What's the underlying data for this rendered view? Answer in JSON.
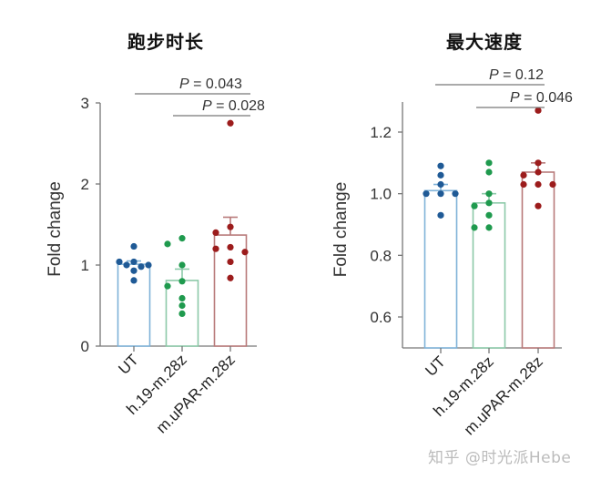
{
  "chart_data": [
    {
      "type": "bar",
      "title": "跑步时长",
      "xlabel": "",
      "ylabel": "Fold change",
      "ylim": [
        0,
        3
      ],
      "yticks": [
        0,
        1,
        2,
        3
      ],
      "grid": false,
      "categories": [
        "UT",
        "h.19-m.28z",
        "m.uPAR-m.28z"
      ],
      "values": [
        1.01,
        0.81,
        1.37
      ],
      "errors": [
        0.04,
        0.14,
        0.22
      ],
      "points": [
        [
          1.23,
          1.04,
          1.04,
          1.0,
          1.0,
          0.98,
          0.93,
          0.81
        ],
        [
          1.33,
          1.26,
          1.0,
          0.8,
          0.74,
          0.59,
          0.5,
          0.4
        ],
        [
          2.75,
          1.47,
          1.4,
          1.22,
          1.2,
          1.16,
          1.04,
          0.84
        ]
      ],
      "colors": {
        "bar_outline": [
          "#7fb2d8",
          "#8cc9a8",
          "#b87a7a"
        ],
        "points": [
          "#1f5a96",
          "#1f9a4e",
          "#9c1c1c"
        ]
      },
      "annotations": [
        {
          "text": "P = 0.043",
          "from": "UT",
          "to": "m.uPAR-m.28z"
        },
        {
          "text": "P = 0.028",
          "from": "h.19-m.28z",
          "to": "m.uPAR-m.28z"
        }
      ]
    },
    {
      "type": "bar",
      "title": "最大速度",
      "xlabel": "",
      "ylabel": "Fold change",
      "ylim": [
        0.5,
        1.3
      ],
      "yticks": [
        0.6,
        0.8,
        1.0,
        1.2
      ],
      "grid": false,
      "categories": [
        "UT",
        "h.19-m.28z",
        "m.uPAR-m.28z"
      ],
      "values": [
        1.01,
        0.97,
        1.07
      ],
      "errors": [
        0.02,
        0.03,
        0.03
      ],
      "points": [
        [
          1.09,
          1.06,
          1.03,
          1.0,
          1.0,
          1.0,
          0.93
        ],
        [
          1.1,
          1.07,
          1.0,
          0.97,
          0.96,
          0.93,
          0.89,
          0.89
        ],
        [
          1.27,
          1.1,
          1.07,
          1.06,
          1.03,
          1.03,
          1.03,
          0.96
        ]
      ],
      "colors": {
        "bar_outline": [
          "#7fb2d8",
          "#8cc9a8",
          "#b87a7a"
        ],
        "points": [
          "#1f5a96",
          "#1f9a4e",
          "#9c1c1c"
        ]
      },
      "annotations": [
        {
          "text": "P = 0.12",
          "from": "UT",
          "to": "m.uPAR-m.28z"
        },
        {
          "text": "P = 0.046",
          "from": "h.19-m.28z",
          "to": "m.uPAR-m.28z"
        }
      ]
    }
  ],
  "titles": {
    "left": "跑步时长",
    "right": "最大速度"
  },
  "watermark": "知乎 @时光派Hebe"
}
